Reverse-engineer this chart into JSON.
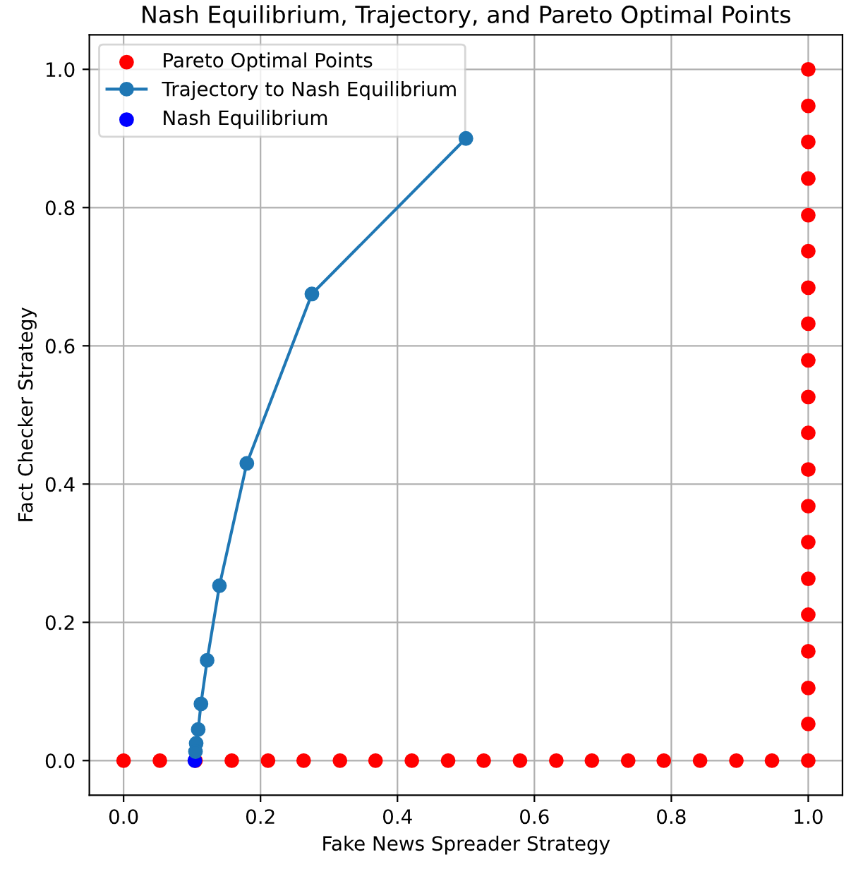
{
  "chart_data": {
    "type": "scatter",
    "title": "Nash Equilibrium, Trajectory, and Pareto Optimal Points",
    "xlabel": "Fake News Spreader Strategy",
    "ylabel": "Fact Checker Strategy",
    "xlim": [
      -0.05,
      1.05
    ],
    "ylim": [
      -0.05,
      1.05
    ],
    "xticks": [
      {
        "value": 0,
        "label": "0.0"
      },
      0.2,
      0.4,
      0.6,
      0.8,
      {
        "value": 1,
        "label": "1.0"
      }
    ],
    "yticks": [
      {
        "value": 0,
        "label": "0.0"
      },
      0.2,
      0.4,
      0.6,
      0.8,
      {
        "value": 1,
        "label": "1.0"
      }
    ],
    "grid": true,
    "legend": "top left",
    "series": [
      {
        "name": "Pareto Optimal Points",
        "marker": "circle",
        "color": "#ff0000",
        "x": [
          0,
          0.053,
          0.105,
          0.158,
          0.211,
          0.263,
          0.316,
          0.368,
          0.421,
          0.474,
          0.526,
          0.579,
          0.632,
          0.684,
          0.737,
          0.789,
          0.842,
          0.895,
          0.947,
          1,
          1,
          1,
          1,
          1,
          1,
          1,
          1,
          1,
          1,
          1,
          1,
          1,
          1,
          1,
          1,
          1,
          1,
          1,
          1
        ],
        "values": [
          0,
          0,
          0,
          0,
          0,
          0,
          0,
          0,
          0,
          0,
          0,
          0,
          0,
          0,
          0,
          0,
          0,
          0,
          0,
          0,
          0.053,
          0.105,
          0.158,
          0.211,
          0.263,
          0.316,
          0.368,
          0.421,
          0.474,
          0.526,
          0.579,
          0.632,
          0.684,
          0.737,
          0.789,
          0.842,
          0.895,
          0.947,
          1
        ]
      },
      {
        "name": "Trajectory to Nash Equilibrium",
        "type": "line",
        "marker": "circle",
        "line_style": "solid",
        "color": "#1f77b4",
        "x": [
          0.5,
          0.275,
          0.18,
          0.14,
          0.122,
          0.113,
          0.109,
          0.106,
          0.105
        ],
        "values": [
          0.9,
          0.675,
          0.43,
          0.253,
          0.145,
          0.082,
          0.045,
          0.025,
          0.013
        ]
      },
      {
        "name": "Nash Equilibrium",
        "marker": "circle",
        "color": "#0000ff",
        "x": [
          0.104
        ],
        "values": [
          0.0
        ]
      }
    ]
  }
}
